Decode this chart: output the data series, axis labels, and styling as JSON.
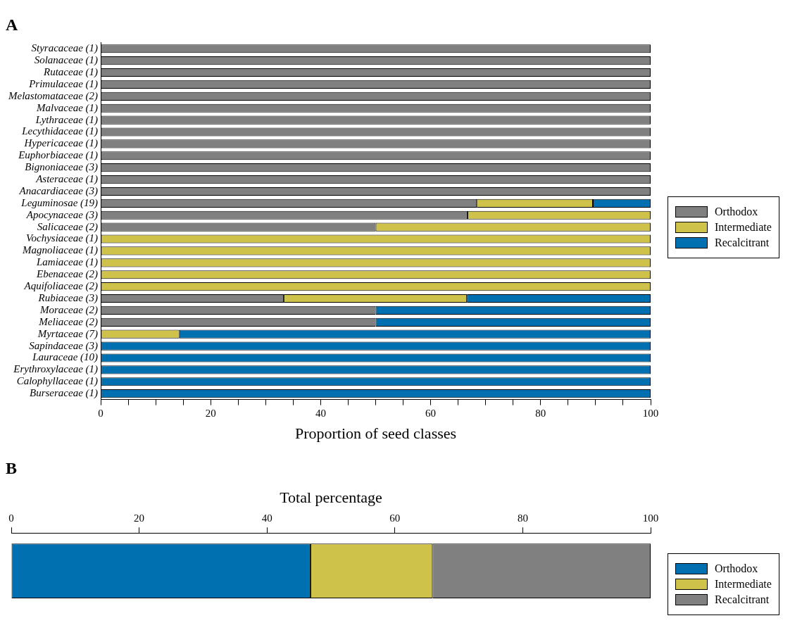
{
  "chart_data": [
    {
      "type": "bar",
      "title": "A",
      "orientation": "horizontal",
      "stacked": true,
      "xlabel": "Proportion of seed classes",
      "categories": [
        "Styracaceae (1)",
        "Solanaceae (1)",
        "Rutaceae (1)",
        "Primulaceae (1)",
        "Melastomataceae (2)",
        "Malvaceae (1)",
        "Lythraceae (1)",
        "Lecythidaceae (1)",
        "Hypericaceae (1)",
        "Euphorbiaceae (1)",
        "Bignoniaceae (3)",
        "Asteraceae (1)",
        "Anacardiaceae (3)",
        "Leguminosae (19)",
        "Apocynaceae (3)",
        "Salicaceae (2)",
        "Vochysiaceae (1)",
        "Magnoliaceae (1)",
        "Lamiaceae (1)",
        "Ebenaceae (2)",
        "Aquifoliaceae (2)",
        "Rubiaceae (3)",
        "Moraceae (2)",
        "Meliaceae (2)",
        "Myrtaceae (7)",
        "Sapindaceae (3)",
        "Lauraceae (10)",
        "Erythroxylaceae (1)",
        "Calophyllaceae (1)",
        "Burseraceae (1)"
      ],
      "series": [
        {
          "name": "Orthodox",
          "color": "#808080",
          "values": [
            100,
            100,
            100,
            100,
            100,
            100,
            100,
            100,
            100,
            100,
            100,
            100,
            100,
            68.4,
            66.7,
            50,
            0,
            0,
            0,
            0,
            0,
            33.3,
            50,
            50,
            0,
            0,
            0,
            0,
            0,
            0
          ]
        },
        {
          "name": "Intermediate",
          "color": "#cfc24a",
          "values": [
            0,
            0,
            0,
            0,
            0,
            0,
            0,
            0,
            0,
            0,
            0,
            0,
            0,
            21.1,
            33.3,
            50,
            100,
            100,
            100,
            100,
            100,
            33.3,
            0,
            0,
            14.3,
            0,
            0,
            0,
            0,
            0
          ]
        },
        {
          "name": "Recalcitrant",
          "color": "#0070b0",
          "values": [
            0,
            0,
            0,
            0,
            0,
            0,
            0,
            0,
            0,
            0,
            0,
            0,
            0,
            10.5,
            0,
            0,
            0,
            0,
            0,
            0,
            0,
            33.4,
            50,
            50,
            85.7,
            100,
            100,
            100,
            100,
            100
          ]
        }
      ],
      "xlim": [
        0,
        100
      ],
      "xticks": [
        0,
        {
          "value": 5,
          "label": null
        },
        {
          "value": 10,
          "label": null
        },
        {
          "value": 15,
          "label": null
        },
        20,
        {
          "value": 25,
          "label": null
        },
        {
          "value": 30,
          "label": null
        },
        {
          "value": 35,
          "label": null
        },
        40,
        {
          "value": 45,
          "label": null
        },
        {
          "value": 50,
          "label": null
        },
        {
          "value": 55,
          "label": null
        },
        60,
        {
          "value": 65,
          "label": null
        },
        {
          "value": 70,
          "label": null
        },
        {
          "value": 75,
          "label": null
        },
        80,
        {
          "value": 85,
          "label": null
        },
        {
          "value": 90,
          "label": null
        },
        {
          "value": 95,
          "label": null
        },
        100
      ],
      "grid": false,
      "legend": "right"
    },
    {
      "type": "bar",
      "title": "B",
      "orientation": "horizontal",
      "stacked": true,
      "x2label": "Total percentage",
      "categories": [
        null
      ],
      "series": [
        {
          "name": "Orthodox",
          "color": "#0070b0",
          "values": [
            46.8
          ],
          "axis": "x2"
        },
        {
          "name": "Intermediate",
          "color": "#cfc24a",
          "values": [
            19.1
          ],
          "axis": "x2"
        },
        {
          "name": "Recalcitrant",
          "color": "#808080",
          "values": [
            34.1
          ],
          "axis": "x2"
        }
      ],
      "x2lim": [
        0,
        100
      ],
      "x2ticks": [
        0,
        20,
        40,
        60,
        80,
        100
      ],
      "grid": false,
      "legend": "bottom right"
    }
  ]
}
